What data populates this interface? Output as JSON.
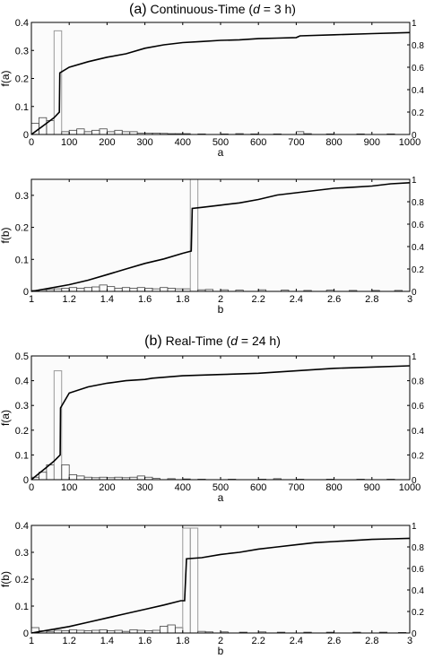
{
  "sections": [
    {
      "label": "(a)",
      "title_main": "Continuous-Time (",
      "title_var": "d",
      "title_rest": " = 3 h)"
    },
    {
      "label": "(b)",
      "title_main": "Real-Time (",
      "title_var": "d",
      "title_rest": " = 24 h)"
    }
  ],
  "chart_data": [
    {
      "type": "bar",
      "panel": "a-top",
      "xlabel": "a",
      "ylabel": "f(a)",
      "xlim": [
        0,
        1000
      ],
      "ylim": [
        0,
        0.4
      ],
      "y2lim": [
        0,
        1
      ],
      "xticks": [
        "0",
        "100",
        "200",
        "300",
        "400",
        "500",
        "600",
        "700",
        "800",
        "900",
        "1000"
      ],
      "yticks": [
        "0",
        "0.1",
        "0.2",
        "0.3",
        "0.4"
      ],
      "y2ticks": [
        "0",
        "0.2",
        "0.4",
        "0.6",
        "0.8",
        "1"
      ],
      "histogram": {
        "bin_width": 20,
        "bins": [
          [
            0,
            0.04
          ],
          [
            20,
            0.06
          ],
          [
            40,
            0.05
          ],
          [
            60,
            0.37
          ],
          [
            80,
            0.01
          ],
          [
            100,
            0.015
          ],
          [
            120,
            0.02
          ],
          [
            140,
            0.01
          ],
          [
            160,
            0.015
          ],
          [
            180,
            0.02
          ],
          [
            200,
            0.01
          ],
          [
            220,
            0.015
          ],
          [
            240,
            0.01
          ],
          [
            260,
            0.01
          ],
          [
            280,
            0.005
          ],
          [
            300,
            0.005
          ],
          [
            320,
            0.005
          ],
          [
            340,
            0.004
          ],
          [
            360,
            0.003
          ],
          [
            380,
            0.003
          ],
          [
            400,
            0.003
          ],
          [
            440,
            0.002
          ],
          [
            500,
            0.002
          ],
          [
            540,
            0.003
          ],
          [
            580,
            0.002
          ],
          [
            640,
            0.002
          ],
          [
            700,
            0.01
          ],
          [
            720,
            0.003
          ],
          [
            780,
            0.002
          ],
          [
            860,
            0.002
          ],
          [
            940,
            0.002
          ]
        ]
      },
      "cdf": {
        "x": [
          0,
          20,
          40,
          60,
          74,
          75,
          100,
          150,
          200,
          250,
          300,
          350,
          400,
          450,
          500,
          550,
          600,
          650,
          700,
          710,
          800,
          900,
          1000
        ],
        "y": [
          0,
          0.05,
          0.1,
          0.15,
          0.2,
          0.55,
          0.6,
          0.65,
          0.69,
          0.72,
          0.77,
          0.8,
          0.82,
          0.83,
          0.84,
          0.845,
          0.855,
          0.86,
          0.865,
          0.88,
          0.89,
          0.9,
          0.91
        ]
      }
    },
    {
      "type": "bar",
      "panel": "a-bottom",
      "xlabel": "b",
      "ylabel": "f(b)",
      "xlim": [
        1,
        3
      ],
      "ylim": [
        0,
        0.35
      ],
      "y2lim": [
        0,
        1
      ],
      "xticks": [
        "1",
        "1.2",
        "1.4",
        "1.6",
        "1.8",
        "2",
        "2.2",
        "2.4",
        "2.6",
        "2.8",
        "3"
      ],
      "yticks": [
        "0",
        "0.1",
        "0.2",
        "0.3"
      ],
      "y2ticks": [
        "0",
        "0.2",
        "0.4",
        "0.6",
        "0.8",
        "1"
      ],
      "histogram": {
        "bin_width": 0.04,
        "bins": [
          [
            1.0,
            0.003
          ],
          [
            1.04,
            0.005
          ],
          [
            1.08,
            0.006
          ],
          [
            1.12,
            0.008
          ],
          [
            1.16,
            0.01
          ],
          [
            1.2,
            0.012
          ],
          [
            1.24,
            0.01
          ],
          [
            1.28,
            0.012
          ],
          [
            1.32,
            0.014
          ],
          [
            1.36,
            0.02
          ],
          [
            1.4,
            0.015
          ],
          [
            1.44,
            0.01
          ],
          [
            1.48,
            0.012
          ],
          [
            1.52,
            0.01
          ],
          [
            1.56,
            0.012
          ],
          [
            1.6,
            0.01
          ],
          [
            1.64,
            0.008
          ],
          [
            1.68,
            0.012
          ],
          [
            1.72,
            0.01
          ],
          [
            1.76,
            0.008
          ],
          [
            1.8,
            0.008
          ],
          [
            1.84,
            0.35
          ],
          [
            1.88,
            0.005
          ],
          [
            1.92,
            0.006
          ],
          [
            2.0,
            0.005
          ],
          [
            2.08,
            0.004
          ],
          [
            2.2,
            0.005
          ],
          [
            2.32,
            0.004
          ],
          [
            2.44,
            0.003
          ],
          [
            2.56,
            0.004
          ],
          [
            2.68,
            0.003
          ],
          [
            2.8,
            0.003
          ],
          [
            2.92,
            0.003
          ]
        ]
      },
      "cdf": {
        "x": [
          1.0,
          1.1,
          1.2,
          1.3,
          1.4,
          1.5,
          1.6,
          1.7,
          1.8,
          1.845,
          1.85,
          1.9,
          2.0,
          2.1,
          2.2,
          2.3,
          2.4,
          2.5,
          2.6,
          2.7,
          2.8,
          2.9,
          3.0
        ],
        "y": [
          0,
          0.03,
          0.06,
          0.1,
          0.15,
          0.2,
          0.25,
          0.29,
          0.34,
          0.36,
          0.74,
          0.75,
          0.77,
          0.79,
          0.82,
          0.86,
          0.88,
          0.9,
          0.92,
          0.93,
          0.94,
          0.96,
          0.97
        ]
      }
    },
    {
      "type": "bar",
      "panel": "b-top",
      "xlabel": "a",
      "ylabel": "f(a)",
      "xlim": [
        0,
        1000
      ],
      "ylim": [
        0,
        0.5
      ],
      "y2lim": [
        0,
        1
      ],
      "xticks": [
        "0",
        "100",
        "200",
        "300",
        "400",
        "500",
        "600",
        "700",
        "800",
        "900",
        "1000"
      ],
      "yticks": [
        "0",
        "0.1",
        "0.2",
        "0.3",
        "0.4",
        "0.5"
      ],
      "y2ticks": [
        "0",
        "0.2",
        "0.4",
        "0.6",
        "0.8",
        "1"
      ],
      "histogram": {
        "bin_width": 20,
        "bins": [
          [
            0,
            0.01
          ],
          [
            20,
            0.03
          ],
          [
            40,
            0.06
          ],
          [
            60,
            0.44
          ],
          [
            80,
            0.06
          ],
          [
            100,
            0.02
          ],
          [
            120,
            0.015
          ],
          [
            140,
            0.01
          ],
          [
            160,
            0.008
          ],
          [
            180,
            0.01
          ],
          [
            200,
            0.008
          ],
          [
            220,
            0.01
          ],
          [
            240,
            0.008
          ],
          [
            260,
            0.01
          ],
          [
            280,
            0.015
          ],
          [
            300,
            0.01
          ],
          [
            320,
            0.005
          ],
          [
            360,
            0.004
          ],
          [
            400,
            0.003
          ],
          [
            440,
            0.002
          ],
          [
            520,
            0.002
          ],
          [
            600,
            0.002
          ],
          [
            640,
            0.004
          ],
          [
            700,
            0.002
          ],
          [
            780,
            0.002
          ],
          [
            860,
            0.002
          ],
          [
            940,
            0.002
          ]
        ]
      },
      "cdf": {
        "x": [
          0,
          20,
          40,
          60,
          76,
          77,
          100,
          150,
          200,
          250,
          300,
          320,
          400,
          500,
          600,
          700,
          800,
          900,
          1000
        ],
        "y": [
          0,
          0.05,
          0.1,
          0.15,
          0.2,
          0.58,
          0.7,
          0.75,
          0.78,
          0.8,
          0.81,
          0.82,
          0.84,
          0.85,
          0.86,
          0.88,
          0.9,
          0.91,
          0.92
        ]
      }
    },
    {
      "type": "bar",
      "panel": "b-bottom",
      "xlabel": "b",
      "ylabel": "f(b)",
      "xlim": [
        1,
        3
      ],
      "ylim": [
        0,
        0.4
      ],
      "y2lim": [
        0,
        1
      ],
      "xticks": [
        "1",
        "1.2",
        "1.4",
        "1.6",
        "1.8",
        "2",
        "2.2",
        "2.4",
        "2.6",
        "2.8",
        "3"
      ],
      "yticks": [
        "0",
        "0.1",
        "0.2",
        "0.3",
        "0.4"
      ],
      "y2ticks": [
        "0",
        "0.2",
        "0.4",
        "0.6",
        "0.8",
        "1"
      ],
      "histogram": {
        "bin_width": 0.04,
        "bins": [
          [
            1.0,
            0.02
          ],
          [
            1.04,
            0.008
          ],
          [
            1.08,
            0.006
          ],
          [
            1.12,
            0.01
          ],
          [
            1.16,
            0.008
          ],
          [
            1.2,
            0.012
          ],
          [
            1.24,
            0.01
          ],
          [
            1.28,
            0.008
          ],
          [
            1.32,
            0.01
          ],
          [
            1.36,
            0.012
          ],
          [
            1.4,
            0.008
          ],
          [
            1.44,
            0.01
          ],
          [
            1.48,
            0.006
          ],
          [
            1.52,
            0.012
          ],
          [
            1.56,
            0.01
          ],
          [
            1.6,
            0.008
          ],
          [
            1.64,
            0.01
          ],
          [
            1.68,
            0.025
          ],
          [
            1.72,
            0.03
          ],
          [
            1.76,
            0.02
          ],
          [
            1.8,
            0.39
          ],
          [
            1.84,
            0.39
          ],
          [
            1.88,
            0.006
          ],
          [
            1.92,
            0.004
          ],
          [
            2.0,
            0.004
          ],
          [
            2.1,
            0.003
          ],
          [
            2.2,
            0.004
          ],
          [
            2.3,
            0.003
          ],
          [
            2.44,
            0.003
          ],
          [
            2.56,
            0.003
          ],
          [
            2.7,
            0.003
          ],
          [
            2.84,
            0.003
          ],
          [
            2.94,
            0.002
          ]
        ]
      },
      "cdf": {
        "x": [
          1.0,
          1.1,
          1.2,
          1.3,
          1.4,
          1.5,
          1.6,
          1.7,
          1.79,
          1.81,
          1.82,
          1.9,
          2.0,
          2.1,
          2.2,
          2.3,
          2.4,
          2.5,
          2.6,
          2.7,
          2.8,
          2.9,
          3.0
        ],
        "y": [
          0,
          0.03,
          0.06,
          0.1,
          0.14,
          0.18,
          0.22,
          0.26,
          0.3,
          0.3,
          0.69,
          0.7,
          0.73,
          0.75,
          0.78,
          0.8,
          0.82,
          0.84,
          0.85,
          0.86,
          0.87,
          0.875,
          0.88
        ]
      }
    }
  ]
}
